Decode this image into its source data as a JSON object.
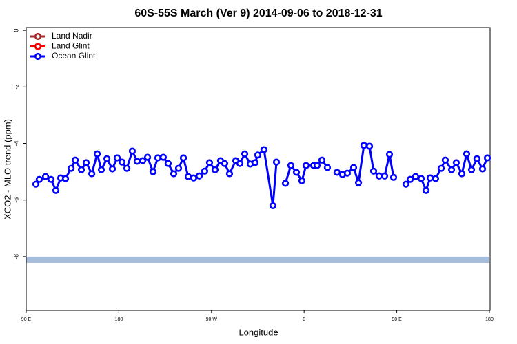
{
  "chart_data": {
    "type": "line",
    "title": "60S-55S March (Ver 9)   2014-09-06 to 2018-12-31",
    "xlabel": "Longitude",
    "ylabel": "XCO2 - MLO trend (ppm)",
    "xlim": [
      90,
      540
    ],
    "ylim": [
      -9.9,
      0.1
    ],
    "xticks": [
      {
        "value": 90,
        "label": "90 E"
      },
      180,
      {
        "value": 270,
        "label": "90 W"
      },
      {
        "value": 360,
        "label": "0"
      },
      {
        "value": 450,
        "label": "90 E"
      },
      {
        "value": 540,
        "label": "180"
      }
    ],
    "yticks": [
      0,
      -2,
      -4,
      -6,
      -8
    ],
    "legend": "upper left",
    "band": {
      "y": [
        -8.22,
        -8.0
      ],
      "color": "#a6bddb"
    },
    "x": [
      99.4,
      102.7,
      108.8,
      114.1,
      118.8,
      123.5,
      128.2,
      133.6,
      137.6,
      143.6,
      148.3,
      153.7,
      159,
      163,
      168.4,
      173.7,
      178.4,
      183.1,
      187.8,
      193.1,
      197.8,
      203.2,
      207.9,
      213.2,
      217.9,
      223.2,
      227.9,
      233.3,
      238,
      242.7,
      247.4,
      252.7,
      258.1,
      263.4,
      268.1,
      273.5,
      278.8,
      282.8,
      287.5,
      293.6,
      297.6,
      302.3,
      307.6,
      312.3,
      315,
      321,
      329.7,
      333.1,
      337.5,
      341.8,
      347.1,
      352.5,
      357.8,
      361.9,
      369.2,
      372.6,
      377.3,
      382.6,
      387.5,
      392,
      397.3,
      402,
      408.1,
      412.8,
      418.1,
      423.5,
      427.5,
      432.8,
      438.2,
      442.9,
      446.9,
      452.5,
      458.9,
      463,
      468.3,
      473.7,
      478.4,
      482.4,
      487.7,
      493.1,
      497.1,
      503.2,
      507.8,
      513.2,
      517.9,
      522.6,
      527.9,
      533.3,
      538
    ],
    "series": [
      {
        "name": "Land Nadir",
        "color": "#a52a2a"
      },
      {
        "name": "Land Glint",
        "color": "#ff0000"
      },
      {
        "name": "Ocean Glint",
        "color": "#0000ff",
        "values": [
          -5.44,
          -5.27,
          -5.17,
          -5.27,
          -5.66,
          -5.22,
          -5.24,
          -4.88,
          -4.59,
          -4.93,
          -4.68,
          -5.07,
          -4.37,
          -4.93,
          -4.54,
          -4.9,
          -4.51,
          -4.66,
          -4.88,
          -4.27,
          -4.63,
          -4.61,
          -4.49,
          -5.0,
          -4.51,
          -4.49,
          -4.71,
          -5.07,
          -4.88,
          -4.51,
          -5.17,
          -5.22,
          -5.15,
          -4.98,
          -4.68,
          -4.93,
          -4.61,
          -4.71,
          -5.07,
          -4.61,
          -4.71,
          -4.37,
          -4.73,
          -4.68,
          -4.41,
          -4.22,
          -6.2,
          -4.66,
          null,
          -5.41,
          -4.78,
          -5.02,
          -5.32,
          -4.78,
          -4.78,
          -4.78,
          -4.59,
          -4.85,
          null,
          -5.02,
          -5.1,
          -5.05,
          -4.85,
          -5.39,
          -4.07,
          -4.1,
          -4.98,
          -5.15,
          -5.15,
          -4.39,
          -5.2,
          null,
          -5.44,
          -5.27,
          -5.17,
          -5.24,
          -5.66,
          -5.22,
          -5.24,
          -4.88,
          -4.59,
          -4.93,
          -4.68,
          -5.07,
          -4.37,
          -4.93,
          -4.54,
          -4.9,
          -4.51
        ]
      }
    ]
  }
}
